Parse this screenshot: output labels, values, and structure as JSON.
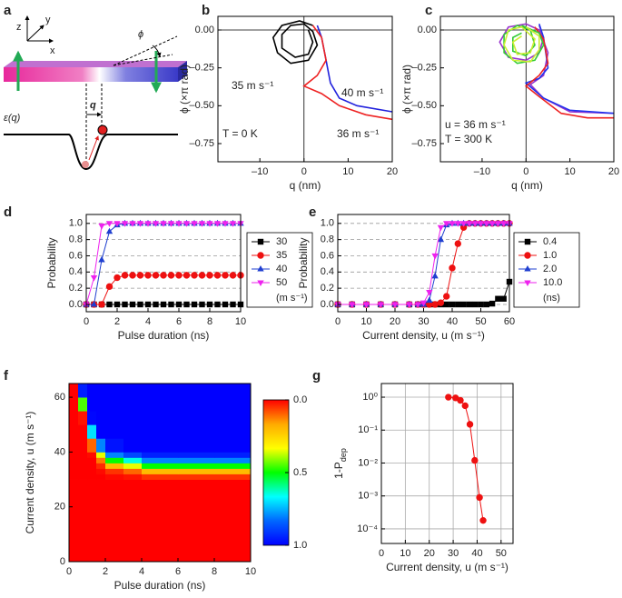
{
  "diagram": {
    "panel": "a",
    "axis_labels": [
      "z",
      "y",
      "x"
    ],
    "angle": "ϕ",
    "position": "q",
    "energy": "ε(q)"
  },
  "chart_data": [
    {
      "panel": "b",
      "type": "line",
      "xlabel": "q (nm)",
      "ylabel": "ϕ (×π rad)",
      "xlim": [
        -19.5,
        20
      ],
      "ylim": [
        -0.87,
        0.09
      ],
      "xticks": [
        {
          "value": -10,
          "label": "–10"
        },
        0,
        10,
        20
      ],
      "yticks": [
        {
          "value": 0,
          "label": "0.00"
        },
        {
          "value": -0.25,
          "label": "–0.25"
        },
        {
          "value": -0.5,
          "label": "–0.50"
        },
        {
          "value": -0.75,
          "label": "–0.75"
        }
      ],
      "zero_lines": true,
      "series": [
        {
          "name": "35 m s⁻¹",
          "color": "#000000",
          "x": [
            1,
            2,
            1,
            -2,
            -5,
            -5,
            -3,
            0,
            2,
            3,
            1,
            -3,
            -6,
            -7,
            -5,
            -1,
            2
          ],
          "values": [
            0,
            -0.08,
            -0.16,
            -0.18,
            -0.12,
            -0.03,
            0.03,
            0.04,
            -0.01,
            -0.1,
            -0.2,
            -0.22,
            -0.15,
            -0.05,
            0.03,
            0.06,
            0.03
          ]
        },
        {
          "name": "40 m s⁻¹",
          "color": "#2222dd",
          "x": [
            3,
            4,
            5,
            6,
            8,
            12,
            20
          ],
          "values": [
            0.03,
            -0.05,
            -0.2,
            -0.35,
            -0.45,
            -0.5,
            -0.54
          ]
        },
        {
          "name": "36 m s⁻¹",
          "color": "#ee2222",
          "x": [
            2,
            4,
            5,
            3,
            0,
            4,
            8,
            14,
            20
          ],
          "values": [
            0.03,
            -0.05,
            -0.2,
            -0.3,
            -0.37,
            -0.42,
            -0.5,
            -0.56,
            -0.59
          ]
        }
      ],
      "annotations": [
        "T = 0 K"
      ]
    },
    {
      "panel": "c",
      "type": "line",
      "xlabel": "q (nm)",
      "ylabel": "ϕ (×π rad)",
      "xlim": [
        -19.5,
        20
      ],
      "ylim": [
        -0.87,
        0.09
      ],
      "xticks": [
        {
          "value": -10,
          "label": "–10"
        },
        0,
        10,
        20
      ],
      "yticks": [
        {
          "value": 0,
          "label": "0.00"
        },
        {
          "value": -0.25,
          "label": "–0.25"
        },
        {
          "value": -0.5,
          "label": "–0.50"
        },
        {
          "value": -0.75,
          "label": "–0.75"
        }
      ],
      "zero_lines": true,
      "series": [
        {
          "color": "#9933cc",
          "x": [
            3,
            4,
            3,
            0,
            -4,
            -6,
            -4,
            0,
            3,
            5,
            4,
            1,
            4,
            10,
            20
          ],
          "values": [
            0.03,
            -0.05,
            -0.15,
            -0.2,
            -0.18,
            -0.08,
            0.02,
            0.04,
            0,
            -0.15,
            -0.3,
            -0.36,
            -0.45,
            -0.54,
            -0.55
          ]
        },
        {
          "color": "#2233ee",
          "x": [
            3,
            4,
            5,
            3,
            0,
            4,
            10,
            20
          ],
          "values": [
            0.04,
            -0.05,
            -0.25,
            -0.32,
            -0.35,
            -0.45,
            -0.53,
            -0.55
          ]
        },
        {
          "color": "#ee2222",
          "x": [
            2,
            4,
            5,
            3,
            0,
            3,
            8,
            14,
            20
          ],
          "values": [
            0.02,
            -0.06,
            -0.22,
            -0.3,
            -0.37,
            -0.44,
            -0.55,
            -0.58,
            -0.58
          ]
        },
        {
          "color": "#33cc33",
          "x": [
            -1,
            3,
            4,
            2,
            -2,
            -5,
            -5,
            -2,
            1,
            2,
            0,
            -3,
            -3,
            -1
          ],
          "values": [
            0.03,
            -0.02,
            -0.1,
            -0.2,
            -0.22,
            -0.15,
            -0.03,
            0.03,
            0,
            -0.1,
            -0.17,
            -0.14,
            -0.05,
            -0.02
          ]
        },
        {
          "color": "#ccee33",
          "x": [
            0,
            3,
            3,
            1,
            -3,
            -5,
            -4,
            -1,
            2,
            1,
            -2,
            -3,
            -1
          ],
          "values": [
            0.02,
            -0.04,
            -0.13,
            -0.21,
            -0.2,
            -0.1,
            0,
            0.02,
            -0.06,
            -0.15,
            -0.16,
            -0.08,
            -0.04
          ]
        }
      ],
      "annotations": [
        "u = 36 m s⁻¹",
        "T = 300 K"
      ]
    },
    {
      "panel": "d",
      "type": "line",
      "xlabel": "Pulse duration (ns)",
      "ylabel": "Probability",
      "xlim": [
        0,
        10
      ],
      "ylim": [
        -0.09,
        1.11
      ],
      "xticks": [
        0,
        2,
        4,
        6,
        8,
        10
      ],
      "yticks": [
        {
          "value": 0,
          "label": "0.0"
        },
        {
          "value": 0.2,
          "label": "0.2"
        },
        {
          "value": 0.4,
          "label": "0.4"
        },
        {
          "value": 0.6,
          "label": "0.6"
        },
        {
          "value": 0.8,
          "label": "0.8"
        },
        {
          "value": 1,
          "label": "1.0"
        }
      ],
      "grid": "y",
      "legend_unit": "(m s⁻¹)",
      "x": [
        0,
        0.5,
        1,
        1.5,
        2,
        2.5,
        3,
        3.5,
        4,
        4.5,
        5,
        5.5,
        6,
        6.5,
        7,
        7.5,
        8,
        8.5,
        9,
        9.5,
        10
      ],
      "series": [
        {
          "name": "30",
          "color": "#000000",
          "marker": "square",
          "values": [
            0,
            0,
            0,
            0,
            0,
            0,
            0,
            0,
            0,
            0,
            0,
            0,
            0,
            0,
            0,
            0,
            0,
            0,
            0,
            0,
            0
          ]
        },
        {
          "name": "35",
          "color": "#ee1111",
          "marker": "circle",
          "values": [
            0,
            0,
            0,
            0.22,
            0.33,
            0.36,
            0.36,
            0.36,
            0.36,
            0.36,
            0.36,
            0.36,
            0.36,
            0.36,
            0.36,
            0.36,
            0.36,
            0.36,
            0.36,
            0.36,
            0.36
          ]
        },
        {
          "name": "40",
          "color": "#1f3fd0",
          "marker": "triangle-up",
          "values": [
            0,
            0,
            0.55,
            0.9,
            0.98,
            1,
            1,
            1,
            1,
            1,
            1,
            1,
            1,
            1,
            1,
            1,
            1,
            1,
            1,
            1,
            1
          ]
        },
        {
          "name": "50",
          "color": "#ee22ee",
          "marker": "triangle-down",
          "values": [
            0,
            0.33,
            0.97,
            1,
            1,
            1,
            1,
            1,
            1,
            1,
            1,
            1,
            1,
            1,
            1,
            1,
            1,
            1,
            1,
            1,
            1
          ]
        }
      ]
    },
    {
      "panel": "e",
      "type": "line",
      "xlabel": "Current density, u (m s⁻¹)",
      "ylabel": "Probability",
      "xlim": [
        0,
        60
      ],
      "ylim": [
        -0.09,
        1.11
      ],
      "xticks": [
        0,
        10,
        20,
        30,
        40,
        50,
        60
      ],
      "yticks": [
        {
          "value": 0,
          "label": "0.0"
        },
        {
          "value": 0.2,
          "label": "0.2"
        },
        {
          "value": 0.4,
          "label": "0.4"
        },
        {
          "value": 0.6,
          "label": "0.6"
        },
        {
          "value": 0.8,
          "label": "0.8"
        },
        {
          "value": 1,
          "label": "1.0"
        }
      ],
      "grid": "y",
      "legend_unit": "(ns)",
      "x": [
        0,
        5,
        10,
        15,
        20,
        25,
        28,
        30,
        32,
        34,
        36,
        38,
        40,
        42,
        44,
        46,
        48,
        50,
        52,
        54,
        56,
        58,
        60
      ],
      "series": [
        {
          "name": "0.4",
          "color": "#000000",
          "marker": "square",
          "values": [
            0,
            0,
            0,
            0,
            0,
            0,
            0,
            0,
            0,
            0,
            0,
            0,
            0,
            0,
            0,
            0,
            0,
            0,
            0,
            0.01,
            0.07,
            0.07,
            0.28
          ]
        },
        {
          "name": "1.0",
          "color": "#ee1111",
          "marker": "circle",
          "values": [
            0,
            0,
            0,
            0,
            0,
            0,
            0,
            0,
            0,
            0,
            0.02,
            0.1,
            0.45,
            0.75,
            0.95,
            1,
            1,
            1,
            1,
            1,
            1,
            1,
            1
          ]
        },
        {
          "name": "2.0",
          "color": "#1f3fd0",
          "marker": "triangle-up",
          "values": [
            0,
            0,
            0,
            0,
            0,
            0,
            0,
            0,
            0.05,
            0.35,
            0.8,
            0.98,
            1,
            1,
            1,
            1,
            1,
            1,
            1,
            1,
            1,
            1,
            1
          ]
        },
        {
          "name": "10.0",
          "color": "#ee22ee",
          "marker": "triangle-down",
          "values": [
            0,
            0,
            0,
            0,
            0,
            0,
            0,
            0.02,
            0.15,
            0.6,
            0.95,
            1,
            1,
            1,
            1,
            1,
            1,
            1,
            1,
            1,
            1,
            1,
            1
          ]
        }
      ]
    },
    {
      "panel": "f",
      "type": "heatmap",
      "xlabel": "Pulse duration (ns)",
      "ylabel": "Current density, u (m s⁻¹)",
      "xlim": [
        0,
        10
      ],
      "ylim": [
        0,
        65
      ],
      "xticks": [
        0,
        2,
        4,
        6,
        8,
        10
      ],
      "yticks": [
        0,
        20,
        40,
        60
      ],
      "xedges": [
        0,
        0.5,
        1,
        1.5,
        2,
        3,
        4,
        6,
        8,
        10
      ],
      "yedges": [
        0,
        10,
        20,
        30,
        32,
        34,
        36,
        38,
        40,
        45,
        50,
        55,
        60,
        65
      ],
      "values": [
        [
          0,
          0,
          0,
          0,
          0,
          0,
          0,
          0,
          0
        ],
        [
          0,
          0,
          0,
          0,
          0,
          0,
          0,
          0,
          0
        ],
        [
          0,
          0,
          0,
          0,
          0,
          0,
          0,
          0,
          0
        ],
        [
          0,
          0,
          0,
          0,
          0.01,
          0.02,
          0.05,
          0.05,
          0.05
        ],
        [
          0,
          0,
          0,
          0.01,
          0.05,
          0.1,
          0.2,
          0.2,
          0.2
        ],
        [
          0,
          0,
          0,
          0.04,
          0.2,
          0.35,
          0.5,
          0.5,
          0.5
        ],
        [
          0,
          0,
          0,
          0.12,
          0.5,
          0.65,
          0.8,
          0.8,
          0.8
        ],
        [
          0,
          0,
          0.01,
          0.35,
          0.8,
          0.88,
          0.95,
          0.95,
          0.95
        ],
        [
          0,
          0,
          0.1,
          0.8,
          0.97,
          1,
          1,
          1,
          1
        ],
        [
          0,
          0,
          0.7,
          1,
          1,
          1,
          1,
          1,
          1
        ],
        [
          0,
          0.02,
          0.99,
          1,
          1,
          1,
          1,
          1,
          1
        ],
        [
          0,
          0.45,
          1,
          1,
          1,
          1,
          1,
          1,
          1
        ],
        [
          0,
          0.95,
          1,
          1,
          1,
          1,
          1,
          1,
          1
        ]
      ],
      "clim": [
        0,
        1
      ],
      "colormap": [
        "#ff0000",
        "#ffaa00",
        "#ffff00",
        "#00ff00",
        "#00ffff",
        "#0066ff",
        "#0000ff"
      ],
      "cticks": [
        {
          "value": 0,
          "label": "0.0"
        },
        {
          "value": 0.5,
          "label": "0.5"
        },
        {
          "value": 1,
          "label": "1.0"
        }
      ]
    },
    {
      "panel": "g",
      "type": "line",
      "xlabel": "Current density, u (m s⁻¹)",
      "ylabel": {
        "text": "1-P",
        "sub": "dep"
      },
      "xlim": [
        0,
        55
      ],
      "ylim": [
        3.6e-05,
        2.6
      ],
      "ylog": true,
      "grid": "both",
      "xticks": [
        0,
        10,
        20,
        30,
        40,
        50
      ],
      "yticks": [
        {
          "value": 1,
          "label": "10⁰"
        },
        {
          "value": 0.1,
          "label": "10⁻¹"
        },
        {
          "value": 0.01,
          "label": "10⁻²"
        },
        {
          "value": 0.001,
          "label": "10⁻³"
        },
        {
          "value": 0.0001,
          "label": "10⁻⁴"
        }
      ],
      "series": [
        {
          "color": "#ee1111",
          "marker": "circle",
          "x": [
            28,
            31,
            33,
            35,
            37,
            39,
            41,
            42.5
          ],
          "values": [
            1,
            0.95,
            0.8,
            0.55,
            0.15,
            0.012,
            0.0009,
            0.00018
          ]
        }
      ]
    }
  ]
}
